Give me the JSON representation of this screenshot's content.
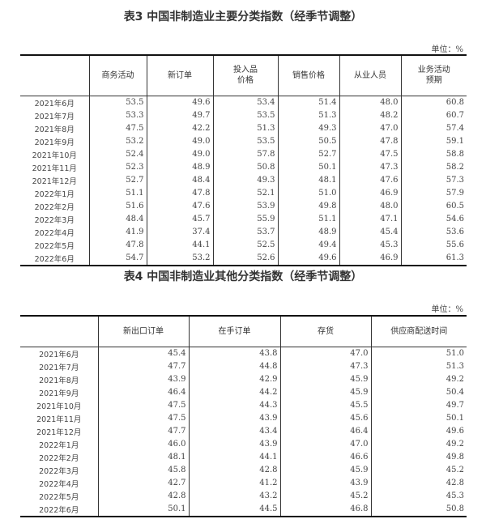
{
  "table3": {
    "title": "表3 中国非制造业主要分类指数（经季节调整）",
    "unit": "单位：%",
    "headers": [
      "",
      "商务活动",
      "新订单",
      "投入品\n价格",
      "销售价格",
      "从业人员",
      "业务活动\n预期"
    ],
    "rows": [
      [
        "2021年6月",
        "53.5",
        "49.6",
        "53.4",
        "51.4",
        "48.0",
        "60.8"
      ],
      [
        "2021年7月",
        "53.3",
        "49.7",
        "53.5",
        "51.3",
        "48.2",
        "60.7"
      ],
      [
        "2021年8月",
        "47.5",
        "42.2",
        "51.3",
        "49.3",
        "47.0",
        "57.4"
      ],
      [
        "2021年9月",
        "53.2",
        "49.0",
        "53.5",
        "50.5",
        "47.8",
        "59.1"
      ],
      [
        "2021年10月",
        "52.4",
        "49.0",
        "57.8",
        "52.7",
        "47.5",
        "58.8"
      ],
      [
        "2021年11月",
        "52.3",
        "48.9",
        "50.8",
        "50.1",
        "47.3",
        "58.2"
      ],
      [
        "2021年12月",
        "52.7",
        "48.4",
        "49.3",
        "48.1",
        "47.6",
        "57.3"
      ],
      [
        "2022年1月",
        "51.1",
        "47.8",
        "52.1",
        "51.0",
        "46.9",
        "57.9"
      ],
      [
        "2022年2月",
        "51.6",
        "47.6",
        "53.9",
        "49.8",
        "48.0",
        "60.5"
      ],
      [
        "2022年3月",
        "48.4",
        "45.7",
        "55.9",
        "51.1",
        "47.1",
        "54.6"
      ],
      [
        "2022年4月",
        "41.9",
        "37.4",
        "53.7",
        "48.9",
        "45.4",
        "53.6"
      ],
      [
        "2022年5月",
        "47.8",
        "44.1",
        "52.5",
        "49.4",
        "45.3",
        "55.6"
      ],
      [
        "2022年6月",
        "54.7",
        "53.2",
        "52.6",
        "49.6",
        "46.9",
        "61.3"
      ]
    ]
  },
  "table4": {
    "title": "表4 中国非制造业其他分类指数（经季节调整）",
    "unit": "单位：%",
    "headers": [
      "",
      "新出口订单",
      "在手订单",
      "存货",
      "供应商配送时间"
    ],
    "rows": [
      [
        "2021年6月",
        "45.4",
        "43.8",
        "47.0",
        "51.0"
      ],
      [
        "2021年7月",
        "47.7",
        "44.8",
        "47.3",
        "51.3"
      ],
      [
        "2021年8月",
        "43.9",
        "42.9",
        "45.9",
        "49.2"
      ],
      [
        "2021年9月",
        "46.4",
        "44.2",
        "45.9",
        "50.4"
      ],
      [
        "2021年10月",
        "47.5",
        "44.3",
        "45.5",
        "49.7"
      ],
      [
        "2021年11月",
        "47.5",
        "43.9",
        "45.6",
        "50.1"
      ],
      [
        "2021年12月",
        "47.7",
        "43.4",
        "46.4",
        "49.6"
      ],
      [
        "2022年1月",
        "46.0",
        "43.9",
        "47.0",
        "49.2"
      ],
      [
        "2022年2月",
        "48.1",
        "44.1",
        "46.6",
        "49.8"
      ],
      [
        "2022年3月",
        "45.8",
        "42.8",
        "45.9",
        "45.2"
      ],
      [
        "2022年4月",
        "42.7",
        "41.2",
        "43.9",
        "42.8"
      ],
      [
        "2022年5月",
        "42.8",
        "43.2",
        "45.2",
        "45.3"
      ],
      [
        "2022年6月",
        "50.1",
        "44.5",
        "46.8",
        "50.8"
      ]
    ]
  }
}
